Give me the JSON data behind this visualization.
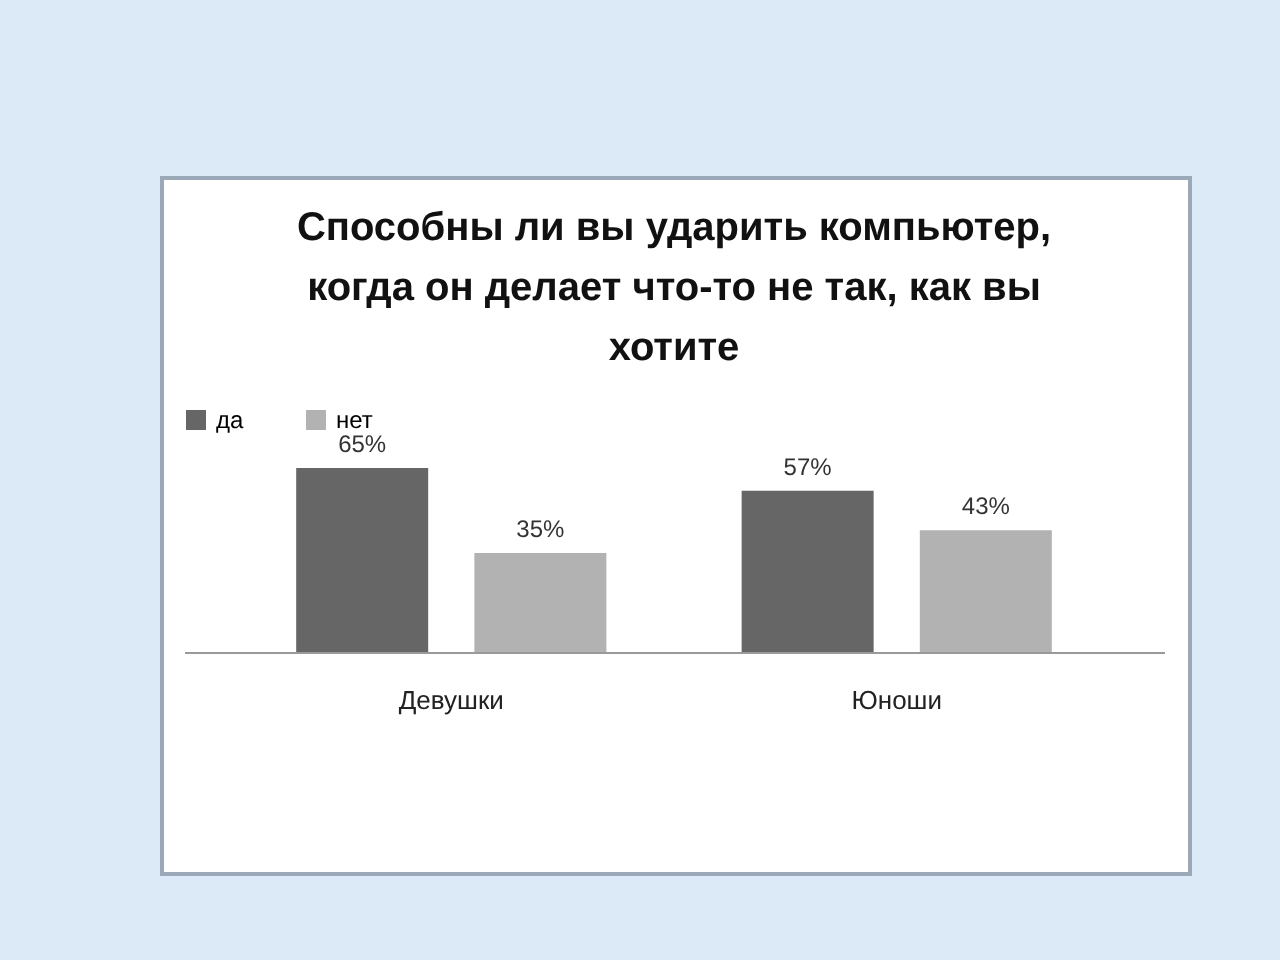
{
  "chart_data": {
    "type": "bar",
    "title": "Способны ли вы ударить компьютер, когда он делает что-то не так, как вы хотите",
    "categories": [
      "Девушки",
      "Юноши"
    ],
    "series": [
      {
        "name": "да",
        "color": "#666666",
        "values": [
          65,
          57
        ],
        "value_labels": [
          "65%",
          "57%"
        ]
      },
      {
        "name": "нет",
        "color": "#b2b2b2",
        "values": [
          35,
          43
        ],
        "value_labels": [
          "35%",
          "43%"
        ]
      }
    ],
    "legend": "top",
    "grid": false
  }
}
